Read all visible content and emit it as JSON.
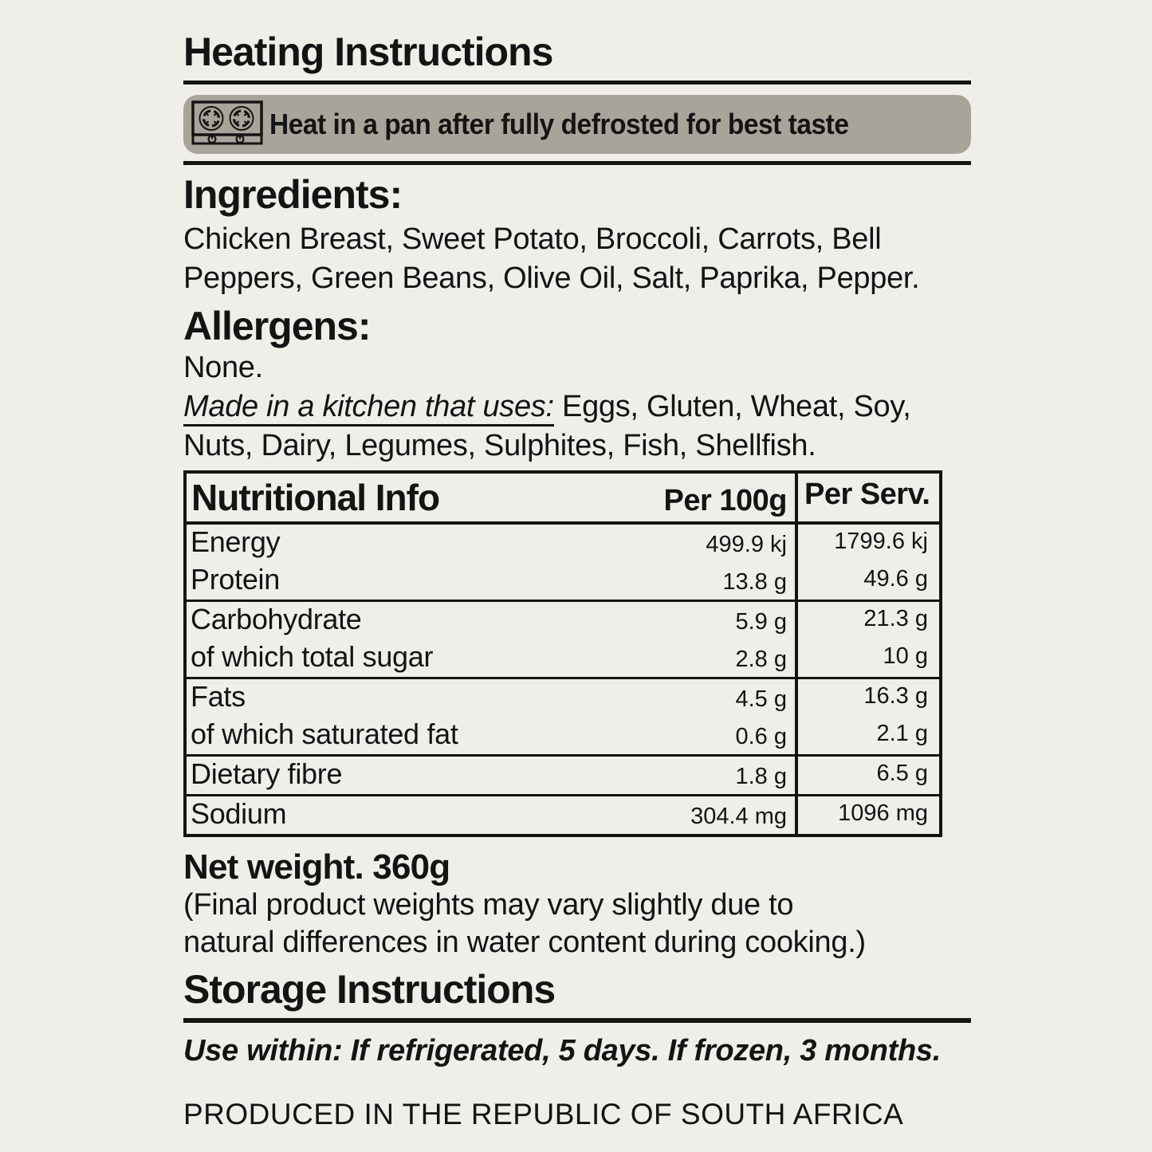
{
  "page": {
    "background_color": "#f0eee9",
    "text_color": "#141414",
    "banner_background_color": "#a9a49a"
  },
  "heating": {
    "title": "Heating Instructions",
    "banner": {
      "icon": "stove-icon",
      "text": "Heat in a pan after fully defrosted for best taste"
    }
  },
  "ingredients": {
    "heading": "Ingredients:",
    "lines": [
      "Chicken Breast, Sweet Potato, Broccoli, Carrots, Bell",
      "Peppers, Green Beans, Olive Oil, Salt, Paprika, Pepper."
    ]
  },
  "allergens": {
    "heading": "Allergens:",
    "none_text": "None.",
    "kitchen_prefix": "Made in a kitchen that uses:",
    "kitchen_line1_rest": " Eggs, Gluten, Wheat, Soy,",
    "kitchen_line2": "Nuts, Dairy, Legumes, Sulphites, Fish, Shellfish."
  },
  "nutrition": {
    "heading": "Nutritional Info",
    "col_per100": "Per 100g",
    "col_perserv": "Per Serv.",
    "rows": [
      {
        "label": "Energy",
        "per100": "499.9 kj",
        "perserv": "1799.6 kj",
        "group_start": true
      },
      {
        "label": "Protein",
        "per100": "13.8 g",
        "perserv": "49.6 g",
        "group_start": false
      },
      {
        "label": "Carbohydrate",
        "per100": "5.9 g",
        "perserv": "21.3 g",
        "group_start": true
      },
      {
        "label": "of which total sugar",
        "per100": "2.8 g",
        "perserv": "10 g",
        "group_start": false
      },
      {
        "label": "Fats",
        "per100": "4.5 g",
        "perserv": "16.3 g",
        "group_start": true
      },
      {
        "label": "of which saturated fat",
        "per100": "0.6 g",
        "perserv": "2.1 g",
        "group_start": false
      },
      {
        "label": "Dietary fibre",
        "per100": "1.8 g",
        "perserv": "6.5 g",
        "group_start": true
      },
      {
        "label": "Sodium",
        "per100": "304.4 mg",
        "perserv": "1096 mg",
        "group_start": true
      }
    ]
  },
  "net_weight": {
    "heading": "Net weight. 360g",
    "note_lines": [
      "(Final product weights may vary slightly due to",
      "natural differences in water content during cooking.)"
    ]
  },
  "storage": {
    "heading": "Storage Instructions",
    "use_within": "Use within: If refrigerated, 5 days. If frozen, 3 months."
  },
  "footer": {
    "produced": "PRODUCED IN THE REPUBLIC OF SOUTH AFRICA"
  }
}
